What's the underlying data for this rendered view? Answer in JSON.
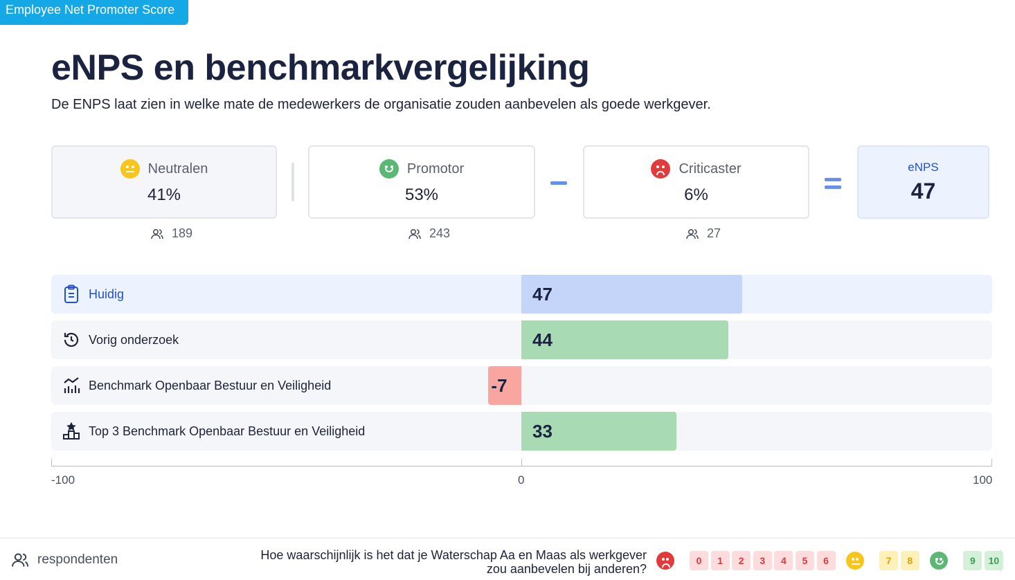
{
  "tag": "Employee Net Promoter Score",
  "title": "eNPS en benchmarkvergelijking",
  "subtitle": "De ENPS laat zien in welke mate de medewerkers de organisatie zouden aanbevelen als goede werkgever.",
  "cards": {
    "neutral": {
      "label": "Neutralen",
      "value": "41%",
      "count": "189"
    },
    "promotor": {
      "label": "Promotor",
      "value": "53%",
      "count": "243"
    },
    "critic": {
      "label": "Criticaster",
      "value": "6%",
      "count": "27"
    },
    "enps": {
      "label": "eNPS",
      "value": "47"
    }
  },
  "chart_data": {
    "type": "bar",
    "orientation": "horizontal",
    "categories": [
      "Huidig",
      "Vorig onderzoek",
      "Benchmark Openbaar Bestuur en Veiligheid",
      "Top 3 Benchmark Openbaar Bestuur en Veiligheid"
    ],
    "values": [
      47,
      44,
      -7,
      33
    ],
    "xlim": [
      -100,
      100
    ],
    "ticks": [
      "-100",
      "0",
      "100"
    ],
    "colors": [
      "#c4d5f9",
      "#a8dbb4",
      "#f9a5a0",
      "#a8dbb4"
    ],
    "row_icons": [
      "clipboard-icon",
      "history-icon",
      "chart-trend-icon",
      "podium-icon"
    ]
  },
  "footer": {
    "respondents_label": "respondenten",
    "question_line1": "Hoe waarschijnlijk is het dat je Waterschap Aa en Maas als werkgever",
    "question_line2": "zou aanbevelen bij anderen?",
    "scale_red": [
      "0",
      "1",
      "2",
      "3",
      "4",
      "5",
      "6"
    ],
    "scale_yellow": [
      "7",
      "8"
    ],
    "scale_green": [
      "9",
      "10"
    ]
  }
}
